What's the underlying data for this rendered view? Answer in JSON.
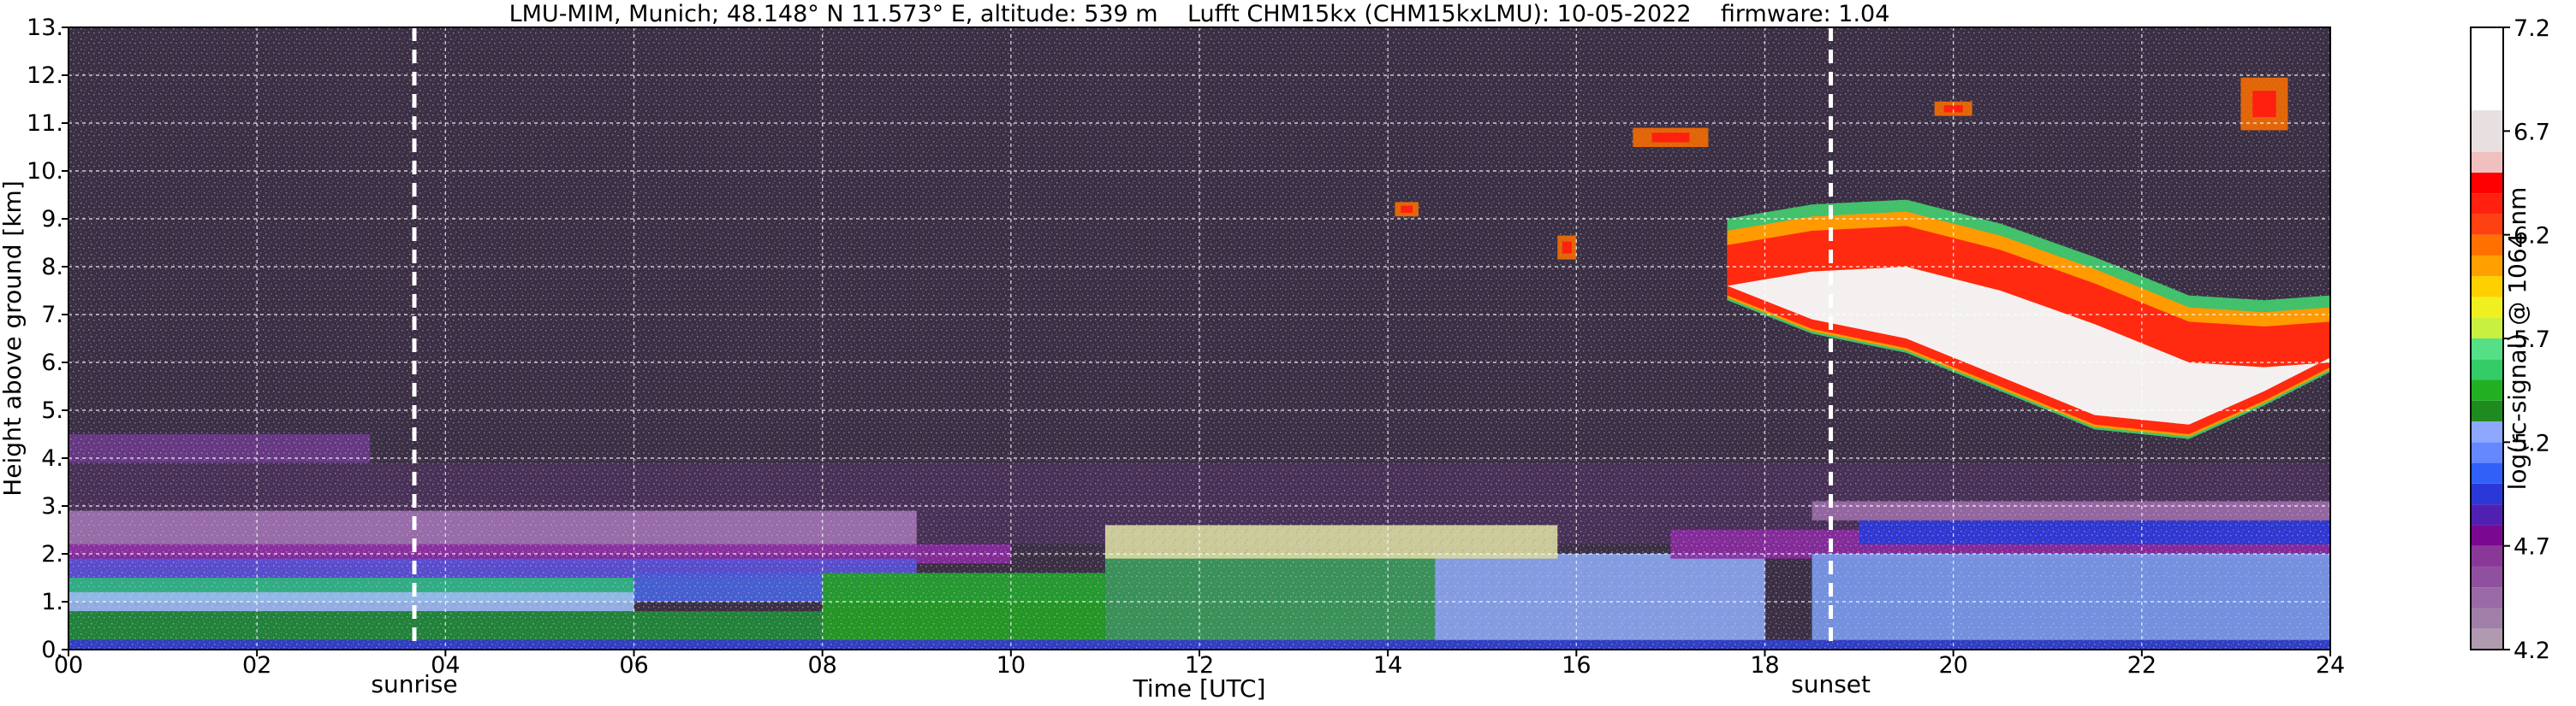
{
  "title": "LMU-MIM, Munich; 48.148° N 11.573° E, altitude: 539 m    Lufft CHM15kx (CHM15kxLMU): 10-05-2022    firmware: 1.04",
  "chart_data": {
    "type": "heatmap",
    "title": "LMU-MIM, Munich; 48.148° N 11.573° E, altitude: 539 m    Lufft CHM15kx (CHM15kxLMU): 10-05-2022    firmware: 1.04",
    "xlabel": "Time [UTC]",
    "ylabel": "Height above ground [km]",
    "xlim": [
      0,
      24
    ],
    "ylim": [
      0,
      13
    ],
    "x_ticks": [
      0,
      2,
      4,
      6,
      8,
      10,
      12,
      14,
      16,
      18,
      20,
      22,
      24
    ],
    "x_tick_labels": [
      "00",
      "02",
      "04",
      "06",
      "08",
      "10",
      "12",
      "14",
      "16",
      "18",
      "20",
      "22",
      "24"
    ],
    "y_ticks": [
      0,
      1,
      2,
      3,
      4,
      5,
      6,
      7,
      8,
      9,
      10,
      11,
      12,
      13
    ],
    "y_tick_labels": [
      "0.",
      "1.",
      "2.",
      "3.",
      "4.",
      "5.",
      "6.",
      "7.",
      "8.",
      "9.",
      "10.",
      "11.",
      "12.",
      "13."
    ],
    "grid": true,
    "annotations": [
      {
        "label": "sunrise",
        "x": 3.67
      },
      {
        "label": "sunset",
        "x": 18.7
      }
    ],
    "colorbar": {
      "label": "log(rc-signal) @ 1064 nm",
      "range": [
        4.2,
        7.2
      ],
      "ticks": [
        4.2,
        4.7,
        5.2,
        5.7,
        6.2,
        6.7,
        7.2
      ],
      "tick_labels": [
        "4.2",
        "4.7",
        "5.2",
        "5.7",
        "6.2",
        "6.7",
        "7.2"
      ],
      "bands": [
        {
          "value": 4.25,
          "color": "#b09ab0"
        },
        {
          "value": 4.35,
          "color": "#a080a8"
        },
        {
          "value": 4.45,
          "color": "#9a6aa6"
        },
        {
          "value": 4.55,
          "color": "#9050a0"
        },
        {
          "value": 4.65,
          "color": "#8a3898"
        },
        {
          "value": 4.75,
          "color": "#7a0890"
        },
        {
          "value": 4.85,
          "color": "#5020b0"
        },
        {
          "value": 4.95,
          "color": "#2a38d8"
        },
        {
          "value": 5.05,
          "color": "#3060f8"
        },
        {
          "value": 5.15,
          "color": "#6688ff"
        },
        {
          "value": 5.25,
          "color": "#8ea8ff"
        },
        {
          "value": 5.35,
          "color": "#1f8a1f"
        },
        {
          "value": 5.45,
          "color": "#22b022"
        },
        {
          "value": 5.55,
          "color": "#33cc66"
        },
        {
          "value": 5.65,
          "color": "#55e088"
        },
        {
          "value": 5.75,
          "color": "#c8f040"
        },
        {
          "value": 5.85,
          "color": "#f0f020"
        },
        {
          "value": 5.95,
          "color": "#ffd000"
        },
        {
          "value": 6.05,
          "color": "#ffa000"
        },
        {
          "value": 6.15,
          "color": "#ff7000"
        },
        {
          "value": 6.25,
          "color": "#ff4010"
        },
        {
          "value": 6.35,
          "color": "#ff2010"
        },
        {
          "value": 6.45,
          "color": "#ff0000"
        },
        {
          "value": 6.55,
          "color": "#f0c0c0"
        },
        {
          "value": 6.65,
          "color": "#e8e0e0"
        },
        {
          "value": 6.95,
          "color": "#ffffff"
        }
      ]
    },
    "layers": [
      {
        "t0": 0,
        "t1": 24,
        "h0": 0,
        "h1": 13,
        "color": "#2a1d34"
      },
      {
        "t0": 0,
        "t1": 3.2,
        "h0": 3.9,
        "h1": 4.5,
        "color": "#6a3a88"
      },
      {
        "t0": 0,
        "t1": 24,
        "h0": 2.2,
        "h1": 3.9,
        "color": "#4a3258"
      },
      {
        "t0": 0,
        "t1": 9,
        "h0": 2.0,
        "h1": 2.9,
        "color": "#a070b0"
      },
      {
        "t0": 0,
        "t1": 10,
        "h0": 1.8,
        "h1": 2.2,
        "color": "#8a2aa0"
      },
      {
        "t0": 0,
        "t1": 9,
        "h0": 1.5,
        "h1": 1.9,
        "color": "#5a50d8"
      },
      {
        "t0": 0,
        "t1": 8,
        "h0": 1.0,
        "h1": 1.5,
        "color": "#30b888"
      },
      {
        "t0": 0,
        "t1": 6,
        "h0": 0.8,
        "h1": 1.2,
        "color": "#9ab8f0"
      },
      {
        "t0": 0,
        "t1": 8,
        "h0": 0.2,
        "h1": 0.8,
        "color": "#1f8a3a"
      },
      {
        "t0": 0,
        "t1": 24,
        "h0": 0.0,
        "h1": 0.2,
        "color": "#3040d0"
      },
      {
        "t0": 6,
        "t1": 11,
        "h0": 1.0,
        "h1": 1.6,
        "color": "#4858d8"
      },
      {
        "t0": 8,
        "t1": 11,
        "h0": 0.2,
        "h1": 1.6,
        "color": "#22a022"
      },
      {
        "t0": 11,
        "t1": 14.5,
        "h0": 0.2,
        "h1": 2.0,
        "color": "#3a9a5a"
      },
      {
        "t0": 14.5,
        "t1": 18,
        "h0": 0.2,
        "h1": 2.0,
        "color": "#8aa6f0"
      },
      {
        "t0": 17,
        "t1": 24,
        "h0": 1.9,
        "h1": 2.5,
        "color": "#8a2aa0"
      },
      {
        "t0": 18.5,
        "t1": 24,
        "h0": 0.2,
        "h1": 2.0,
        "color": "#7a9aee"
      },
      {
        "t0": 19,
        "t1": 24,
        "h0": 2.2,
        "h1": 2.7,
        "color": "#2a38d8"
      },
      {
        "t0": 18.5,
        "t1": 24,
        "h0": 2.7,
        "h1": 3.1,
        "color": "#9a6aa6"
      },
      {
        "t0": 11.0,
        "t1": 15.8,
        "h0": 1.9,
        "h1": 2.6,
        "color": "#d8d8a0"
      }
    ],
    "cloud_band": {
      "points": [
        {
          "t": 17.6,
          "top": 9.0,
          "bottom": 7.3
        },
        {
          "t": 18.5,
          "top": 9.3,
          "bottom": 6.6
        },
        {
          "t": 19.5,
          "top": 9.4,
          "bottom": 6.2
        },
        {
          "t": 20.5,
          "top": 8.9,
          "bottom": 5.4
        },
        {
          "t": 21.5,
          "top": 8.2,
          "bottom": 4.6
        },
        {
          "t": 22.5,
          "top": 7.4,
          "bottom": 4.4
        },
        {
          "t": 23.3,
          "top": 7.3,
          "bottom": 5.1
        },
        {
          "t": 24.0,
          "top": 7.4,
          "bottom": 5.8
        }
      ],
      "outer_color": "#44d070",
      "mid_color": "#ff9a00",
      "inner_color": "#ff2a10",
      "core_color": "#f4f0f0"
    },
    "cirrus_patches": [
      {
        "t": 23.3,
        "h": 11.4,
        "dt": 0.5,
        "dh": 1.1
      },
      {
        "t": 20.0,
        "h": 11.3,
        "dt": 0.4,
        "dh": 0.3
      },
      {
        "t": 17.0,
        "h": 10.7,
        "dt": 0.8,
        "dh": 0.4
      },
      {
        "t": 14.2,
        "h": 9.2,
        "dt": 0.25,
        "dh": 0.3
      },
      {
        "t": 15.9,
        "h": 8.4,
        "dt": 0.2,
        "dh": 0.5
      }
    ],
    "sunrise_time": 3.67,
    "sunset_time": 18.7
  }
}
